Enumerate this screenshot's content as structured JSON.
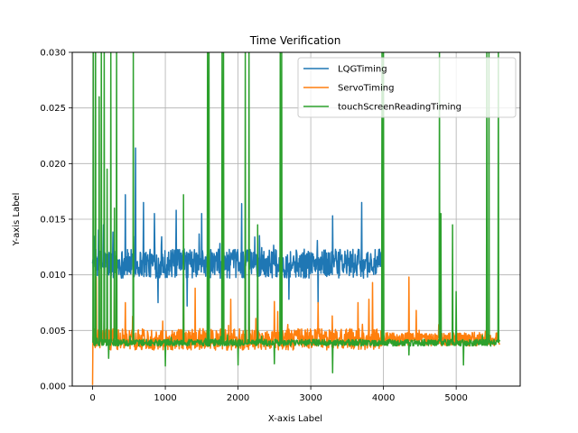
{
  "chart_data": {
    "type": "line",
    "title": "Time Verification",
    "xlabel": "X-axis Label",
    "ylabel": "Y-axis Label",
    "xlim": [
      -280,
      5880
    ],
    "ylim": [
      0,
      0.03
    ],
    "xticks": [
      0,
      1000,
      2000,
      3000,
      4000,
      5000
    ],
    "xtick_labels": [
      "0",
      "1000",
      "2000",
      "3000",
      "4000",
      "5000"
    ],
    "yticks": [
      0,
      0.005,
      0.01,
      0.015,
      0.02,
      0.025,
      0.03
    ],
    "ytick_labels": [
      "0.000",
      "0.005",
      "0.010",
      "0.015",
      "0.020",
      "0.025",
      "0.030"
    ],
    "grid": true,
    "legend_position": "upper right",
    "series": [
      {
        "name": "LQGTiming",
        "color": "#1f77b4",
        "x_range": [
          0,
          4000
        ],
        "baseline": 0.011,
        "noise": 0.0013,
        "spikes_high": [
          [
            150,
            0.0145
          ],
          [
            450,
            0.0172
          ],
          [
            590,
            0.0214
          ],
          [
            700,
            0.0165
          ],
          [
            850,
            0.0155
          ],
          [
            1150,
            0.0158
          ],
          [
            1300,
            0.0184
          ],
          [
            1500,
            0.0155
          ],
          [
            2050,
            0.0164
          ],
          [
            2600,
            0.0151
          ],
          [
            3300,
            0.0153
          ],
          [
            3700,
            0.0165
          ]
        ],
        "spikes_low": [
          [
            900,
            0.0075
          ],
          [
            1300,
            0.0072
          ],
          [
            2700,
            0.0078
          ],
          [
            3100,
            0.0074
          ]
        ]
      },
      {
        "name": "ServoTiming",
        "color": "#ff7f0e",
        "x_range": [
          0,
          5600
        ],
        "baseline": 0.0042,
        "noise": 0.0006,
        "extra_noise_until": 4000,
        "spikes_high": [
          [
            50,
            0.0098
          ],
          [
            300,
            0.0088
          ],
          [
            450,
            0.0075
          ],
          [
            1250,
            0.0092
          ],
          [
            1410,
            0.0088
          ],
          [
            1900,
            0.0078
          ],
          [
            2150,
            0.0075
          ],
          [
            2500,
            0.0076
          ],
          [
            3100,
            0.0075
          ],
          [
            3650,
            0.0075
          ],
          [
            3800,
            0.0078
          ],
          [
            3850,
            0.0093
          ],
          [
            4350,
            0.0098
          ],
          [
            4450,
            0.0068
          ]
        ],
        "spikes_low": [
          [
            0,
            0.0001
          ],
          [
            600,
            0.0033
          ],
          [
            1000,
            0.0035
          ],
          [
            1500,
            0.0034
          ],
          [
            2000,
            0.0033
          ]
        ]
      },
      {
        "name": "touchScreenReadingTiming",
        "color": "#2ca02c",
        "x_range": [
          0,
          5600
        ],
        "baseline": 0.0039,
        "noise": 0.0003,
        "spikes_high": [
          [
            10,
            0.03
          ],
          [
            40,
            0.03
          ],
          [
            90,
            0.026
          ],
          [
            120,
            0.03
          ],
          [
            160,
            0.03
          ],
          [
            200,
            0.0195
          ],
          [
            250,
            0.03
          ],
          [
            300,
            0.016
          ],
          [
            330,
            0.03
          ],
          [
            560,
            0.03
          ],
          [
            1000,
            0.018
          ],
          [
            1250,
            0.0172
          ],
          [
            1580,
            0.03
          ],
          [
            1600,
            0.03
          ],
          [
            1780,
            0.03
          ],
          [
            1800,
            0.03
          ],
          [
            2100,
            0.03
          ],
          [
            2150,
            0.03
          ],
          [
            2270,
            0.0145
          ],
          [
            2580,
            0.03
          ],
          [
            2600,
            0.03
          ],
          [
            3980,
            0.03
          ],
          [
            4000,
            0.03
          ],
          [
            4770,
            0.03
          ],
          [
            4790,
            0.0155
          ],
          [
            4950,
            0.0145
          ],
          [
            5000,
            0.0085
          ],
          [
            5420,
            0.03
          ],
          [
            5450,
            0.03
          ],
          [
            5580,
            0.03
          ]
        ],
        "spikes_low": [
          [
            220,
            0.0025
          ],
          [
            1000,
            0.0018
          ],
          [
            2000,
            0.0019
          ],
          [
            2500,
            0.002
          ],
          [
            3300,
            0.0012
          ],
          [
            4350,
            0.0028
          ],
          [
            5100,
            0.0019
          ]
        ]
      }
    ]
  }
}
